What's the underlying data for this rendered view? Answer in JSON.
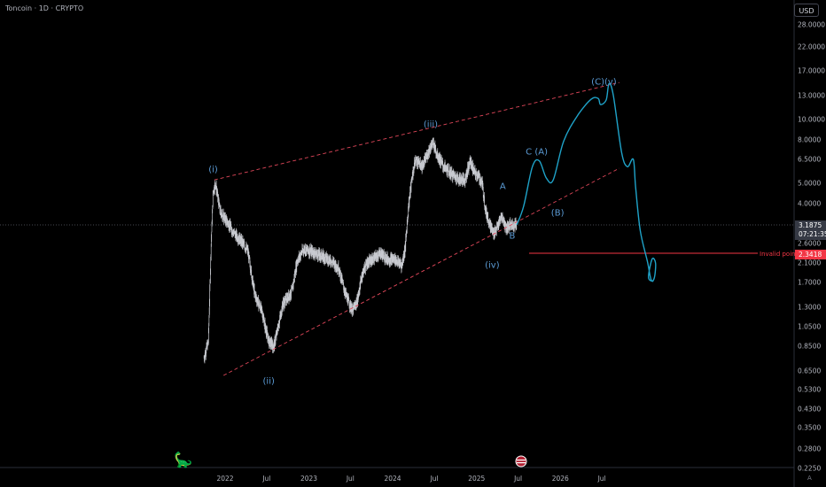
{
  "header": {
    "title": "Toncoin · 1D · CRYPTO",
    "currency": "USD"
  },
  "price_axis": {
    "ticks": [
      "28.0000",
      "22.0000",
      "17.0000",
      "13.0000",
      "10.0000",
      "8.0000",
      "6.5000",
      "5.0000",
      "4.0000",
      "2.6000",
      "2.1000",
      "1.7000",
      "1.3000",
      "1.0500",
      "0.8500",
      "0.6500",
      "0.5300",
      "0.4300",
      "0.3500",
      "0.2800",
      "0.2250"
    ],
    "current_price": "3.1875",
    "countdown": "07:21:35",
    "invalid_price": "2.3418"
  },
  "time_axis": {
    "labels": [
      "2022",
      "Jul",
      "2023",
      "Jul",
      "2024",
      "Jul",
      "2025",
      "Jul",
      "2026",
      "Jul"
    ]
  },
  "annotations": {
    "wave_i": "(i)",
    "wave_ii": "(ii)",
    "wave_iii": "(iii)",
    "wave_iv": "(iv)",
    "wave_A": "A",
    "wave_B": "B",
    "wave_C_A": "C (A)",
    "wave_B_paren": "(B)",
    "wave_C_v": "(C)(v)",
    "invalid_label": "Invalid point"
  },
  "colors": {
    "background": "#000000",
    "axis_text": "#b2b5be",
    "candles": "#c8cad0",
    "wedge_lines": "#e0475a",
    "projection": "#1fa3c9",
    "wave_labels": "#5b9bd5",
    "invalid": "#f23645",
    "price_label_bg": "#363a45"
  },
  "icons": {
    "logo": "tradingview-dino-icon",
    "event_flag": "us-flag-event-icon",
    "auto_scale": "auto-scale-icon"
  },
  "chart_data": {
    "type": "line",
    "scale": "log",
    "symbol": "Toncoin",
    "interval": "1D",
    "exchange": "CRYPTO",
    "x_range": [
      "2021-09",
      "2026-11"
    ],
    "y_range": [
      0.225,
      28
    ],
    "price_series": [
      [
        "2021-10-01",
        0.75
      ],
      [
        "2021-10-20",
        0.9
      ],
      [
        "2021-11-01",
        2.6
      ],
      [
        "2021-11-10",
        4.6
      ],
      [
        "2021-11-20",
        5.0
      ],
      [
        "2021-12-10",
        3.7
      ],
      [
        "2022-01-10",
        3.3
      ],
      [
        "2022-02-10",
        2.9
      ],
      [
        "2022-03-10",
        2.7
      ],
      [
        "2022-04-10",
        2.4
      ],
      [
        "2022-05-10",
        1.5
      ],
      [
        "2022-06-10",
        1.25
      ],
      [
        "2022-06-25",
        1.05
      ],
      [
        "2022-07-10",
        0.9
      ],
      [
        "2022-08-01",
        0.85
      ],
      [
        "2022-08-20",
        1.05
      ],
      [
        "2022-09-10",
        1.35
      ],
      [
        "2022-10-01",
        1.45
      ],
      [
        "2022-10-20",
        1.55
      ],
      [
        "2022-11-10",
        2.15
      ],
      [
        "2022-12-10",
        2.45
      ],
      [
        "2023-01-10",
        2.4
      ],
      [
        "2023-02-10",
        2.3
      ],
      [
        "2023-03-10",
        2.25
      ],
      [
        "2023-04-10",
        2.15
      ],
      [
        "2023-05-10",
        2.0
      ],
      [
        "2023-06-10",
        1.5
      ],
      [
        "2023-07-10",
        1.25
      ],
      [
        "2023-08-01",
        1.4
      ],
      [
        "2023-08-20",
        1.85
      ],
      [
        "2023-09-10",
        2.1
      ],
      [
        "2023-10-10",
        2.2
      ],
      [
        "2023-11-10",
        2.35
      ],
      [
        "2023-12-10",
        2.2
      ],
      [
        "2024-01-10",
        2.2
      ],
      [
        "2024-02-10",
        2.05
      ],
      [
        "2024-02-25",
        2.5
      ],
      [
        "2024-03-10",
        3.9
      ],
      [
        "2024-03-25",
        5.3
      ],
      [
        "2024-04-10",
        6.5
      ],
      [
        "2024-05-10",
        6.0
      ],
      [
        "2024-06-10",
        7.3
      ],
      [
        "2024-06-25",
        7.8
      ],
      [
        "2024-07-10",
        7.0
      ],
      [
        "2024-08-10",
        6.0
      ],
      [
        "2024-09-10",
        5.6
      ],
      [
        "2024-10-10",
        5.3
      ],
      [
        "2024-11-10",
        5.2
      ],
      [
        "2024-12-05",
        6.4
      ],
      [
        "2024-12-20",
        5.7
      ],
      [
        "2025-01-10",
        5.4
      ],
      [
        "2025-01-25",
        5.0
      ],
      [
        "2025-02-10",
        3.7
      ],
      [
        "2025-03-01",
        3.2
      ],
      [
        "2025-03-15",
        2.9
      ],
      [
        "2025-04-01",
        3.1
      ],
      [
        "2025-04-20",
        3.5
      ],
      [
        "2025-05-10",
        3.1
      ],
      [
        "2025-06-01",
        3.2
      ],
      [
        "2025-06-25",
        3.1875
      ]
    ],
    "current_price": 3.1875,
    "invalid_point": {
      "label": "Invalid point",
      "price": 2.3418
    },
    "trendlines": [
      {
        "role": "upper",
        "from": [
          "2021-11-15",
          5.2
        ],
        "to": [
          "2026-09-15",
          15.0
        ]
      },
      {
        "role": "lower",
        "from": [
          "2021-12-25",
          0.62
        ],
        "to": [
          "2026-09-15",
          5.9
        ]
      }
    ],
    "projection": [
      [
        "2025-06-25",
        3.19
      ],
      [
        "2025-07-25",
        3.9
      ],
      [
        "2025-09-01",
        6.0
      ],
      [
        "2025-10-01",
        6.4
      ],
      [
        "2025-11-01",
        5.3
      ],
      [
        "2025-12-01",
        5.2
      ],
      [
        "2026-01-15",
        7.9
      ],
      [
        "2026-03-15",
        10.4
      ],
      [
        "2026-05-15",
        12.5
      ],
      [
        "2026-06-15",
        12.6
      ],
      [
        "2026-06-25",
        11.8
      ],
      [
        "2026-07-20",
        12.4
      ],
      [
        "2026-08-01",
        14.8
      ],
      [
        "2026-08-20",
        13.0
      ],
      [
        "2026-09-25",
        7.0
      ],
      [
        "2026-10-20",
        6.0
      ],
      [
        "2026-11-15",
        6.5
      ],
      [
        "2026-11-25",
        4.8
      ],
      [
        "2026-12-15",
        3.0
      ],
      [
        "2027-01-15",
        2.15
      ],
      [
        "2027-02-01",
        1.75
      ],
      [
        "2027-02-15",
        1.8
      ],
      [
        "2027-02-20",
        2.1
      ],
      [
        "2027-02-05",
        2.2
      ],
      [
        "2027-01-20",
        1.8
      ],
      [
        "2027-02-10",
        1.72
      ]
    ],
    "wave_labels": [
      {
        "text": "(i)",
        "at": [
          "2021-11-10",
          5.8
        ]
      },
      {
        "text": "(ii)",
        "at": [
          "2022-07-10",
          0.58
        ]
      },
      {
        "text": "(iii)",
        "at": [
          "2024-06-15",
          9.5
        ]
      },
      {
        "text": "(iv)",
        "at": [
          "2025-03-10",
          2.05
        ]
      },
      {
        "text": "A",
        "at": [
          "2025-04-25",
          4.8
        ]
      },
      {
        "text": "B",
        "at": [
          "2025-06-05",
          2.8
        ]
      },
      {
        "text": "C (A)",
        "at": [
          "2025-09-20",
          7.0
        ]
      },
      {
        "text": "(B)",
        "at": [
          "2025-12-20",
          3.6
        ]
      },
      {
        "text": "(C)(v)",
        "at": [
          "2026-07-10",
          15.0
        ]
      }
    ],
    "ylabel_ticks": [
      28,
      22,
      17,
      13,
      10,
      8,
      6.5,
      5,
      4,
      2.6,
      2.1,
      1.7,
      1.3,
      1.05,
      0.85,
      0.65,
      0.53,
      0.43,
      0.35,
      0.28,
      0.225
    ]
  }
}
